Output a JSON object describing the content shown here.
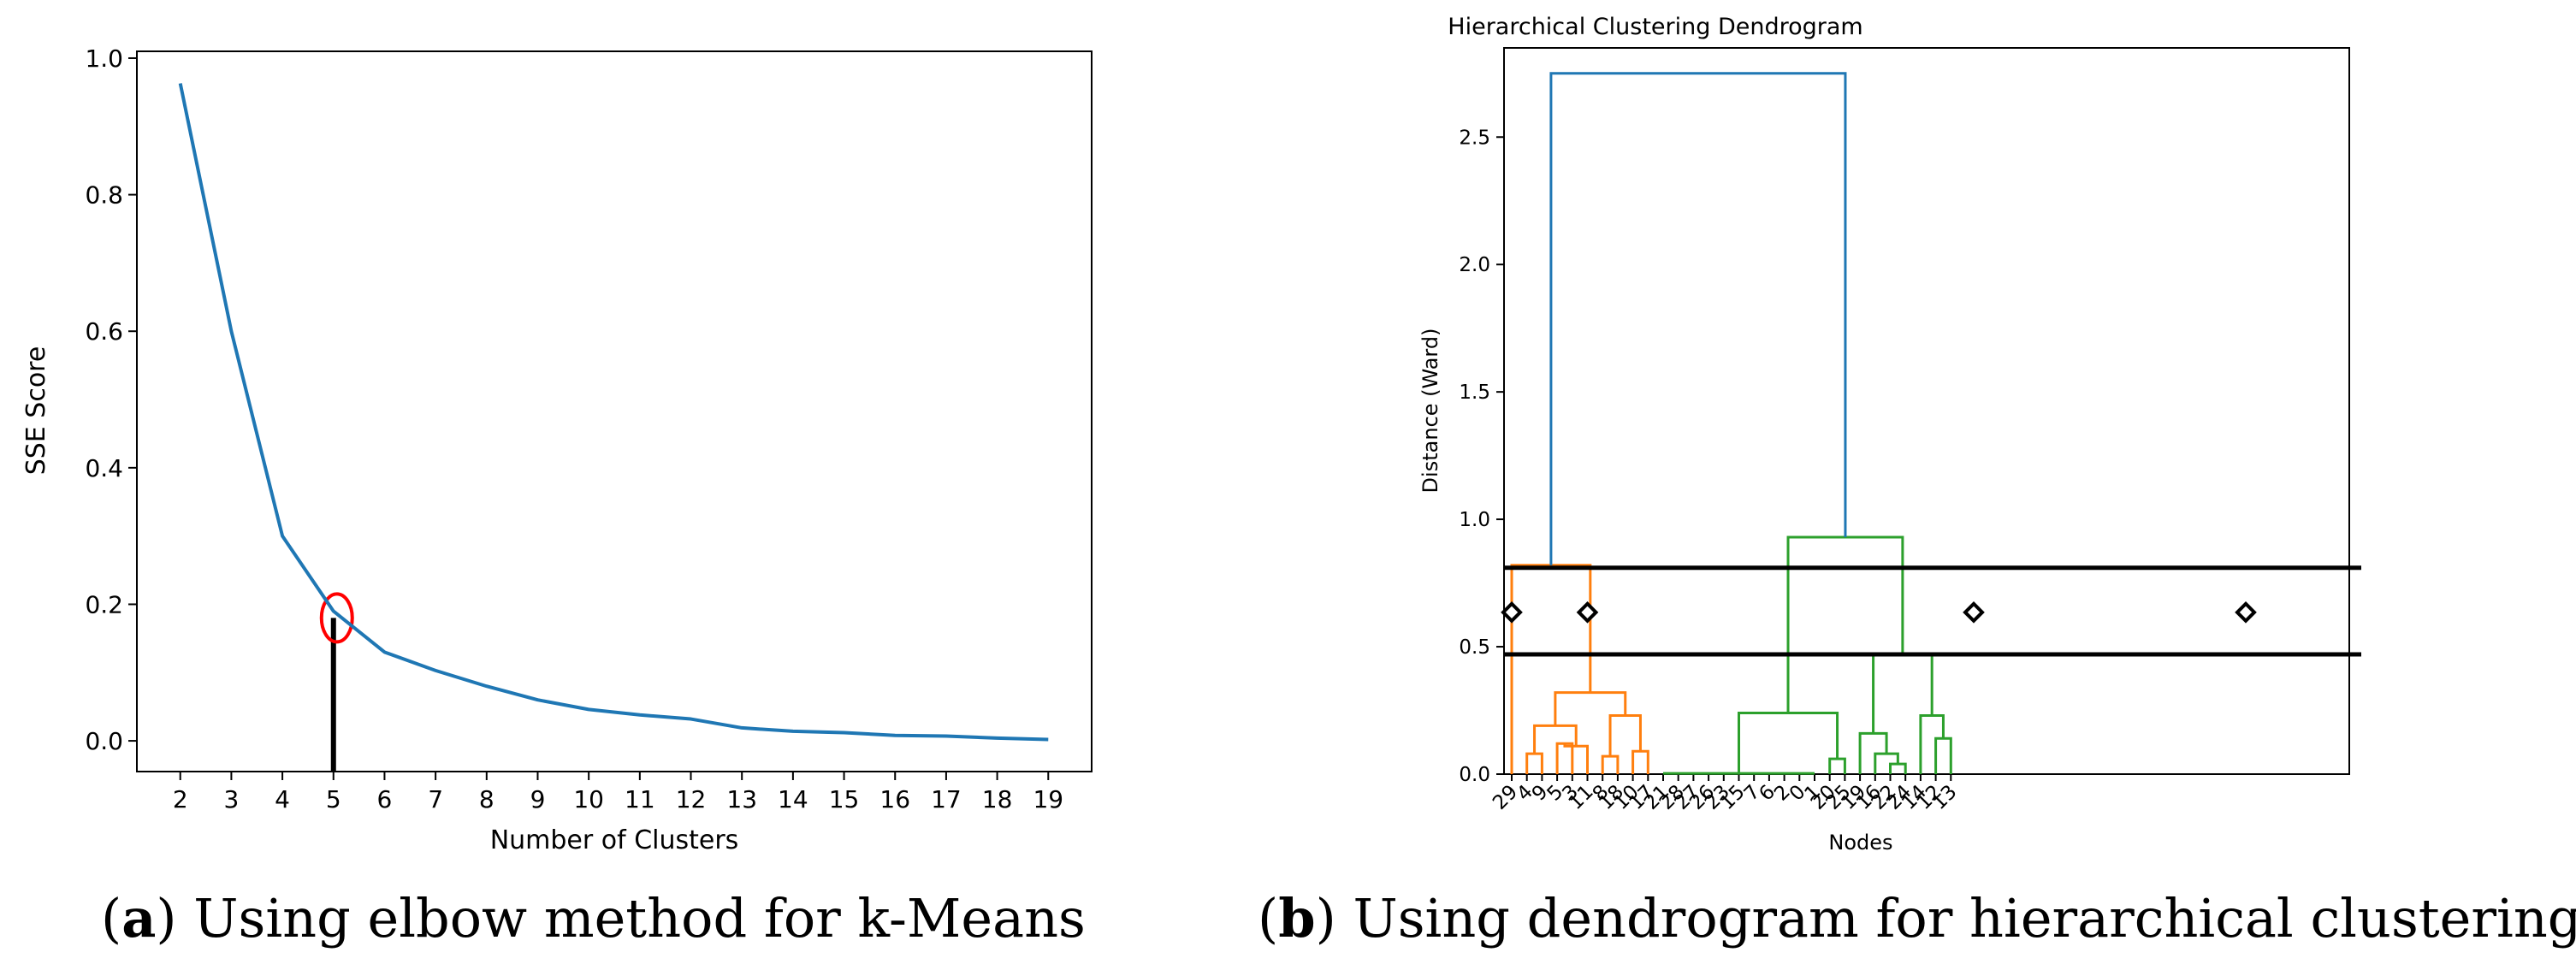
{
  "chart_data": [
    {
      "type": "line",
      "panel": "a",
      "title": "",
      "xlabel": "Number of Clusters",
      "ylabel": "SSE Score",
      "x": [
        2,
        3,
        4,
        5,
        6,
        7,
        8,
        9,
        10,
        11,
        12,
        13,
        14,
        15,
        16,
        17,
        18,
        19
      ],
      "y": [
        0.963,
        0.6,
        0.3,
        0.19,
        0.13,
        0.103,
        0.08,
        0.06,
        0.046,
        0.038,
        0.032,
        0.019,
        0.014,
        0.012,
        0.008,
        0.007,
        0.004,
        0.002
      ],
      "xticks": [
        "2",
        "3",
        "4",
        "5",
        "6",
        "7",
        "8",
        "9",
        "10",
        "11",
        "12",
        "13",
        "14",
        "15",
        "16",
        "17",
        "18",
        "19"
      ],
      "yticks": [
        "0.0",
        "0.2",
        "0.4",
        "0.6",
        "0.8",
        "1.0"
      ],
      "ytick_values": [
        0.0,
        0.2,
        0.4,
        0.6,
        0.8,
        1.0
      ],
      "xlim": [
        1.15,
        19.85
      ],
      "ylim": [
        -0.045,
        1.01
      ],
      "line_color": "#1f77b4",
      "annotation": {
        "type": "circle-and-vertical-line",
        "x": 5,
        "y": 0.18,
        "circle_color": "#ff0000",
        "line_color": "#000000"
      },
      "caption": {
        "label": "a",
        "text": ") Using elbow method for k-Means",
        "open": "("
      }
    },
    {
      "type": "dendrogram",
      "panel": "b",
      "title": "Hierarchical Clustering Dendrogram",
      "xlabel": "Nodes",
      "ylabel": "Distance (Ward)",
      "leaves": [
        "29",
        "4",
        "9",
        "5",
        "3",
        "11",
        "8",
        "18",
        "10",
        "17",
        "21",
        "28",
        "27",
        "26",
        "23",
        "15",
        "7",
        "6",
        "2",
        "0",
        "1",
        "20",
        "25",
        "19",
        "16",
        "22",
        "24",
        "14",
        "12",
        "13"
      ],
      "yticks": [
        "0.0",
        "0.5",
        "1.0",
        "1.5",
        "2.0",
        "2.5"
      ],
      "ytick_values": [
        0.0,
        0.5,
        1.0,
        1.5,
        2.0,
        2.5
      ],
      "ylim": [
        0,
        2.85
      ],
      "cut_lines": [
        0.81,
        0.47
      ],
      "cut_markers": [
        0.635,
        0.635,
        0.635,
        0.635
      ],
      "colors": {
        "top": "#1f77b4",
        "cluster1": "#ff7f0e",
        "cluster2": "#2ca02c",
        "cut": "#000000"
      },
      "caption": {
        "label": "b",
        "text": ") Using dendrogram for hierarchical clustering",
        "open": "("
      }
    }
  ]
}
